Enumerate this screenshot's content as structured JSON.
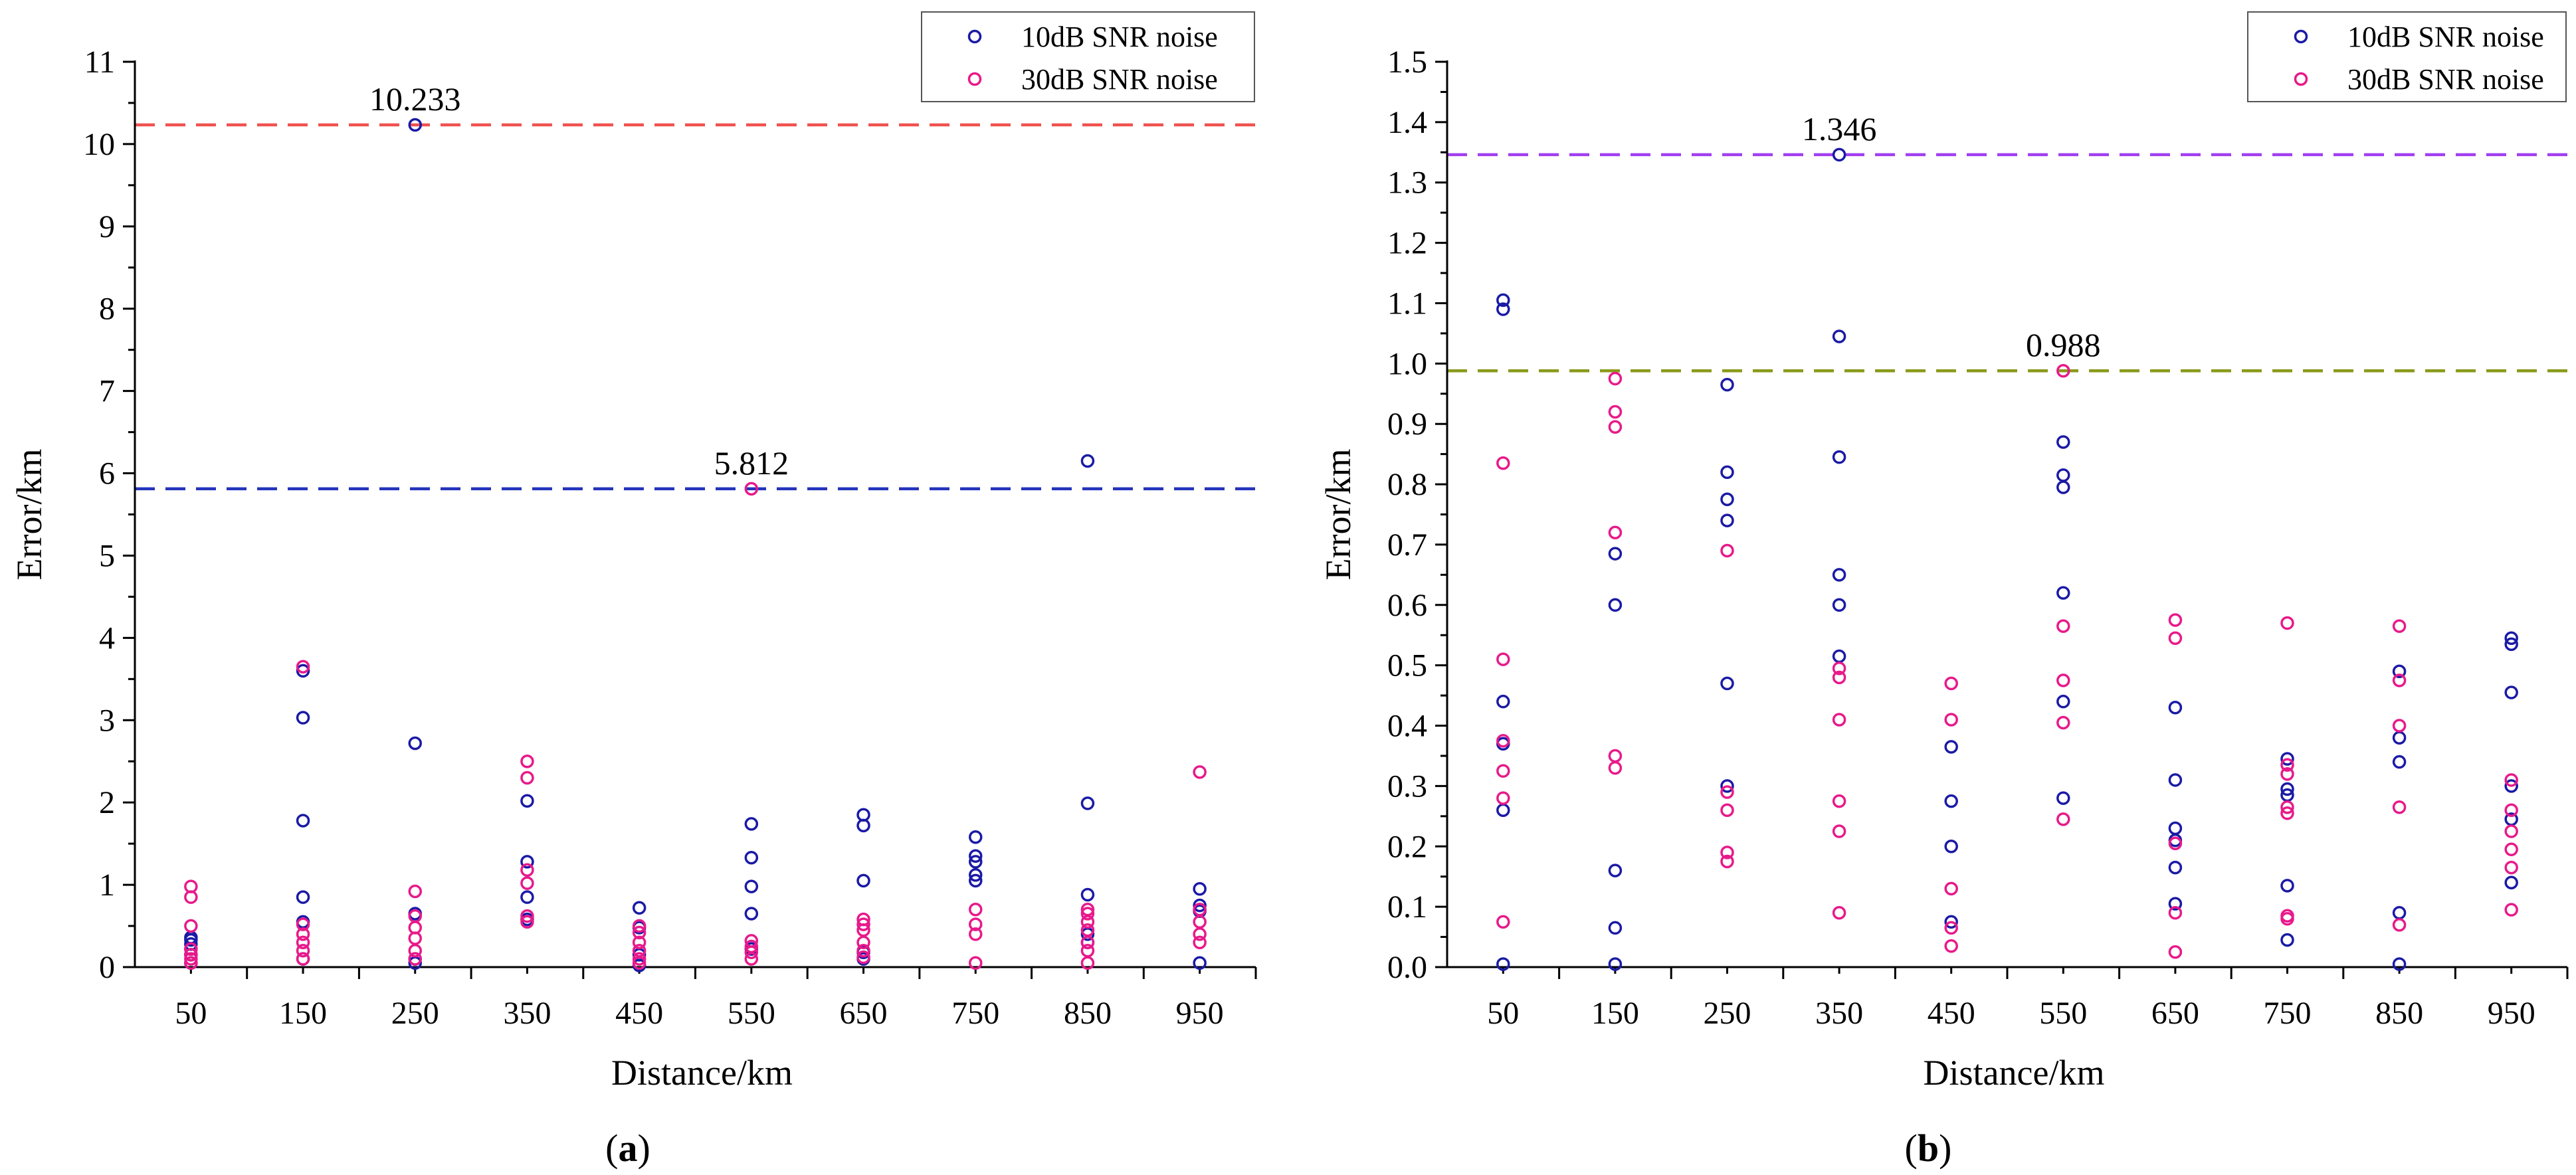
{
  "colors": {
    "series_10db": "#1a1aa6",
    "series_30db": "#e8198b",
    "axis": "#000000"
  },
  "chart_data": [
    {
      "type": "scatter",
      "panel_label": "a",
      "xlabel": "Distance/km",
      "ylabel": "Error/km",
      "x_ticks": [
        50,
        150,
        250,
        350,
        450,
        550,
        650,
        750,
        850,
        950
      ],
      "xlim": [
        0,
        1000
      ],
      "ylim": [
        0,
        11
      ],
      "y_ticks": [
        0,
        1,
        2,
        3,
        4,
        5,
        6,
        7,
        8,
        9,
        10,
        11
      ],
      "y_tick_labels": [
        "0",
        "1",
        "2",
        "3",
        "4",
        "5",
        "6",
        "7",
        "8",
        "9",
        "10",
        "11"
      ],
      "legend_position": "top-right",
      "series": [
        {
          "name": "10dB SNR noise",
          "color": "#1a1aa6",
          "points": [
            [
              50,
              0.05
            ],
            [
              50,
              0.15
            ],
            [
              50,
              0.22
            ],
            [
              50,
              0.28
            ],
            [
              50,
              0.33
            ],
            [
              50,
              0.36
            ],
            [
              150,
              0.1
            ],
            [
              150,
              0.55
            ],
            [
              150,
              0.85
            ],
            [
              150,
              1.78
            ],
            [
              150,
              3.03
            ],
            [
              150,
              3.6
            ],
            [
              250,
              0.05
            ],
            [
              250,
              0.1
            ],
            [
              250,
              0.65
            ],
            [
              250,
              2.72
            ],
            [
              250,
              10.233
            ],
            [
              350,
              0.58
            ],
            [
              350,
              0.85
            ],
            [
              350,
              1.28
            ],
            [
              350,
              2.02
            ],
            [
              450,
              0.02
            ],
            [
              450,
              0.15
            ],
            [
              450,
              0.48
            ],
            [
              450,
              0.72
            ],
            [
              550,
              0.22
            ],
            [
              550,
              0.65
            ],
            [
              550,
              0.98
            ],
            [
              550,
              1.33
            ],
            [
              550,
              1.74
            ],
            [
              650,
              0.1
            ],
            [
              650,
              0.18
            ],
            [
              650,
              1.05
            ],
            [
              650,
              1.72
            ],
            [
              650,
              1.85
            ],
            [
              750,
              1.05
            ],
            [
              750,
              1.12
            ],
            [
              750,
              1.28
            ],
            [
              750,
              1.35
            ],
            [
              750,
              1.58
            ],
            [
              850,
              0.3
            ],
            [
              850,
              0.4
            ],
            [
              850,
              0.88
            ],
            [
              850,
              1.99
            ],
            [
              850,
              6.15
            ],
            [
              950,
              0.05
            ],
            [
              950,
              0.68
            ],
            [
              950,
              0.75
            ],
            [
              950,
              0.95
            ]
          ]
        },
        {
          "name": "30dB SNR noise",
          "color": "#e8198b",
          "points": [
            [
              50,
              0.05
            ],
            [
              50,
              0.1
            ],
            [
              50,
              0.15
            ],
            [
              50,
              0.22
            ],
            [
              50,
              0.5
            ],
            [
              50,
              0.85
            ],
            [
              50,
              0.98
            ],
            [
              150,
              0.1
            ],
            [
              150,
              0.2
            ],
            [
              150,
              0.3
            ],
            [
              150,
              0.4
            ],
            [
              150,
              0.52
            ],
            [
              150,
              3.65
            ],
            [
              250,
              0.1
            ],
            [
              250,
              0.2
            ],
            [
              250,
              0.35
            ],
            [
              250,
              0.48
            ],
            [
              250,
              0.62
            ],
            [
              250,
              0.92
            ],
            [
              350,
              0.55
            ],
            [
              350,
              0.62
            ],
            [
              350,
              1.02
            ],
            [
              350,
              1.18
            ],
            [
              350,
              2.3
            ],
            [
              350,
              2.5
            ],
            [
              450,
              0.05
            ],
            [
              450,
              0.1
            ],
            [
              450,
              0.2
            ],
            [
              450,
              0.3
            ],
            [
              450,
              0.42
            ],
            [
              450,
              0.5
            ],
            [
              550,
              0.1
            ],
            [
              550,
              0.18
            ],
            [
              550,
              0.25
            ],
            [
              550,
              0.32
            ],
            [
              550,
              5.812
            ],
            [
              650,
              0.12
            ],
            [
              650,
              0.2
            ],
            [
              650,
              0.3
            ],
            [
              650,
              0.45
            ],
            [
              650,
              0.52
            ],
            [
              650,
              0.58
            ],
            [
              750,
              0.05
            ],
            [
              750,
              0.4
            ],
            [
              750,
              0.52
            ],
            [
              750,
              0.7
            ],
            [
              850,
              0.05
            ],
            [
              850,
              0.2
            ],
            [
              850,
              0.3
            ],
            [
              850,
              0.45
            ],
            [
              850,
              0.55
            ],
            [
              850,
              0.65
            ],
            [
              850,
              0.7
            ],
            [
              950,
              0.3
            ],
            [
              950,
              0.4
            ],
            [
              950,
              0.55
            ],
            [
              950,
              0.7
            ],
            [
              950,
              2.37
            ]
          ]
        }
      ],
      "reference_lines": [
        {
          "value": 10.233,
          "label": "10.233",
          "color": "#f0524f",
          "label_x": 250
        },
        {
          "value": 5.812,
          "label": "5.812",
          "color": "#2233bb",
          "label_x": 550
        }
      ]
    },
    {
      "type": "scatter",
      "panel_label": "b",
      "xlabel": "Distance/km",
      "ylabel": "Error/km",
      "x_ticks": [
        50,
        150,
        250,
        350,
        450,
        550,
        650,
        750,
        850,
        950
      ],
      "xlim": [
        0,
        1000
      ],
      "ylim": [
        0,
        1.5
      ],
      "y_ticks": [
        0,
        0.1,
        0.2,
        0.3,
        0.4,
        0.5,
        0.6,
        0.7,
        0.8,
        0.9,
        1.0,
        1.1,
        1.2,
        1.3,
        1.4,
        1.5
      ],
      "y_tick_labels": [
        "0.0",
        "0.1",
        "0.2",
        "0.3",
        "0.4",
        "0.5",
        "0.6",
        "0.7",
        "0.8",
        "0.9",
        "1.0",
        "1.1",
        "1.2",
        "1.3",
        "1.4",
        "1.5"
      ],
      "legend_position": "top-right",
      "series": [
        {
          "name": "10dB SNR noise",
          "color": "#1a1aa6",
          "points": [
            [
              50,
              0.005
            ],
            [
              50,
              0.26
            ],
            [
              50,
              0.37
            ],
            [
              50,
              0.44
            ],
            [
              50,
              1.09
            ],
            [
              50,
              1.105
            ],
            [
              150,
              0.005
            ],
            [
              150,
              0.065
            ],
            [
              150,
              0.16
            ],
            [
              150,
              0.6
            ],
            [
              150,
              0.685
            ],
            [
              250,
              0.3
            ],
            [
              250,
              0.47
            ],
            [
              250,
              0.74
            ],
            [
              250,
              0.775
            ],
            [
              250,
              0.82
            ],
            [
              250,
              0.965
            ],
            [
              350,
              0.515
            ],
            [
              350,
              0.6
            ],
            [
              350,
              0.65
            ],
            [
              350,
              0.845
            ],
            [
              350,
              1.045
            ],
            [
              350,
              1.346
            ],
            [
              450,
              0.075
            ],
            [
              450,
              0.2
            ],
            [
              450,
              0.275
            ],
            [
              450,
              0.365
            ],
            [
              550,
              0.28
            ],
            [
              550,
              0.44
            ],
            [
              550,
              0.62
            ],
            [
              550,
              0.795
            ],
            [
              550,
              0.815
            ],
            [
              550,
              0.87
            ],
            [
              650,
              0.105
            ],
            [
              650,
              0.165
            ],
            [
              650,
              0.21
            ],
            [
              650,
              0.23
            ],
            [
              650,
              0.31
            ],
            [
              650,
              0.43
            ],
            [
              750,
              0.045
            ],
            [
              750,
              0.135
            ],
            [
              750,
              0.285
            ],
            [
              750,
              0.295
            ],
            [
              750,
              0.345
            ],
            [
              850,
              0.005
            ],
            [
              850,
              0.09
            ],
            [
              850,
              0.34
            ],
            [
              850,
              0.38
            ],
            [
              850,
              0.49
            ],
            [
              950,
              0.14
            ],
            [
              950,
              0.245
            ],
            [
              950,
              0.3
            ],
            [
              950,
              0.455
            ],
            [
              950,
              0.535
            ],
            [
              950,
              0.545
            ]
          ]
        },
        {
          "name": "30dB SNR noise",
          "color": "#e8198b",
          "points": [
            [
              50,
              0.075
            ],
            [
              50,
              0.28
            ],
            [
              50,
              0.325
            ],
            [
              50,
              0.375
            ],
            [
              50,
              0.51
            ],
            [
              50,
              0.835
            ],
            [
              150,
              0.33
            ],
            [
              150,
              0.35
            ],
            [
              150,
              0.72
            ],
            [
              150,
              0.895
            ],
            [
              150,
              0.92
            ],
            [
              150,
              0.975
            ],
            [
              250,
              0.175
            ],
            [
              250,
              0.19
            ],
            [
              250,
              0.26
            ],
            [
              250,
              0.29
            ],
            [
              250,
              0.69
            ],
            [
              350,
              0.09
            ],
            [
              350,
              0.225
            ],
            [
              350,
              0.275
            ],
            [
              350,
              0.41
            ],
            [
              350,
              0.48
            ],
            [
              350,
              0.495
            ],
            [
              450,
              0.035
            ],
            [
              450,
              0.065
            ],
            [
              450,
              0.13
            ],
            [
              450,
              0.41
            ],
            [
              450,
              0.47
            ],
            [
              550,
              0.245
            ],
            [
              550,
              0.405
            ],
            [
              550,
              0.475
            ],
            [
              550,
              0.565
            ],
            [
              550,
              0.988
            ],
            [
              650,
              0.025
            ],
            [
              650,
              0.09
            ],
            [
              650,
              0.205
            ],
            [
              650,
              0.545
            ],
            [
              650,
              0.575
            ],
            [
              750,
              0.08
            ],
            [
              750,
              0.085
            ],
            [
              750,
              0.255
            ],
            [
              750,
              0.265
            ],
            [
              750,
              0.32
            ],
            [
              750,
              0.335
            ],
            [
              750,
              0.57
            ],
            [
              850,
              0.07
            ],
            [
              850,
              0.265
            ],
            [
              850,
              0.4
            ],
            [
              850,
              0.475
            ],
            [
              850,
              0.565
            ],
            [
              950,
              0.095
            ],
            [
              950,
              0.165
            ],
            [
              950,
              0.195
            ],
            [
              950,
              0.225
            ],
            [
              950,
              0.26
            ],
            [
              950,
              0.31
            ]
          ]
        }
      ],
      "reference_lines": [
        {
          "value": 1.346,
          "label": "1.346",
          "color": "#a13ff0",
          "label_x": 350
        },
        {
          "value": 0.988,
          "label": "0.988",
          "color": "#8a9a1a",
          "label_x": 550
        }
      ]
    }
  ]
}
